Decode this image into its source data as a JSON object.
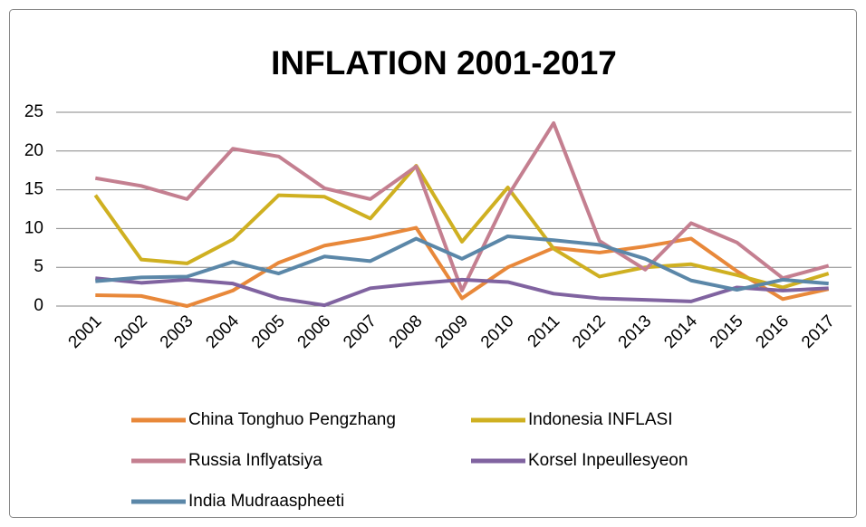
{
  "chart_data": {
    "type": "line",
    "title": "INFLATION 2001-2017",
    "categories": [
      "2001",
      "2002",
      "2003",
      "2004",
      "2005",
      "2006",
      "2007",
      "2008",
      "2009",
      "2010",
      "2011",
      "2012",
      "2013",
      "2014",
      "2015",
      "2016",
      "2017"
    ],
    "series": [
      {
        "name": "China Tonghuo Pengzhang",
        "color": "#e8883a",
        "values": [
          1.4,
          1.3,
          0,
          2.0,
          5.6,
          7.8,
          8.8,
          10.1,
          1.0,
          5.0,
          7.5,
          6.9,
          7.7,
          8.7,
          4.5,
          0.9,
          2.2
        ]
      },
      {
        "name": "Indonesia INFLASI",
        "color": "#cfb021",
        "values": [
          14.3,
          6.0,
          5.5,
          8.6,
          14.3,
          14.1,
          11.3,
          18.1,
          8.3,
          15.3,
          7.4,
          3.8,
          5.0,
          5.4,
          4.0,
          2.4,
          4.2
        ]
      },
      {
        "name": "Russia Inflyatsiya",
        "color": "#c47f90",
        "values": [
          16.5,
          15.5,
          13.8,
          20.3,
          19.3,
          15.2,
          13.8,
          18.0,
          2.0,
          14.2,
          23.6,
          8.4,
          4.7,
          10.7,
          8.2,
          3.6,
          5.2
        ]
      },
      {
        "name": "Korsel Inpeullesyeon",
        "color": "#8063a0",
        "values": [
          3.6,
          3.0,
          3.4,
          2.9,
          1.0,
          0.1,
          2.3,
          2.9,
          3.4,
          3.1,
          1.6,
          1.0,
          0.8,
          0.6,
          2.4,
          2.0,
          2.3
        ]
      },
      {
        "name": "India Mudraaspheeti",
        "color": "#5b87a8",
        "values": [
          3.2,
          3.7,
          3.8,
          5.7,
          4.2,
          6.4,
          5.8,
          8.7,
          6.1,
          9.0,
          8.5,
          7.9,
          6.1,
          3.3,
          2.1,
          3.4,
          2.9
        ]
      }
    ],
    "ylim": [
      0,
      25
    ],
    "yticks": [
      0,
      5,
      10,
      15,
      20,
      25
    ],
    "grid": true,
    "legend": "bottom"
  }
}
